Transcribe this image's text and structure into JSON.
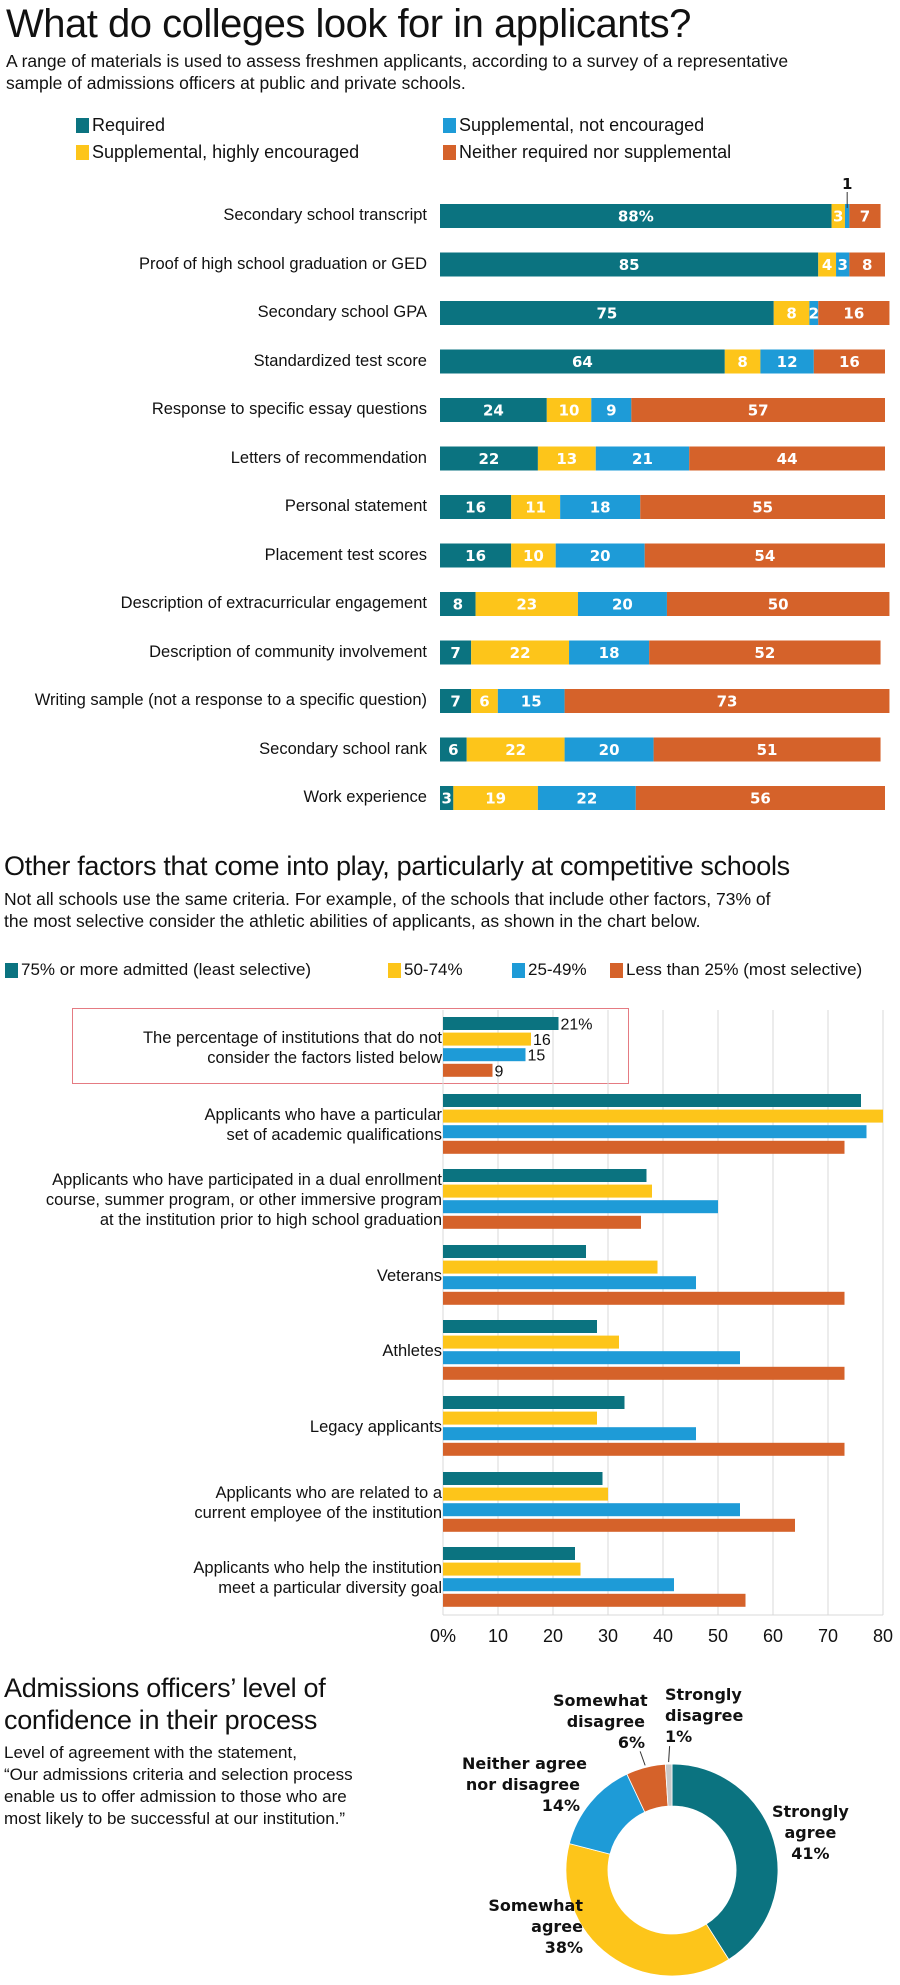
{
  "header": {
    "title": "What do colleges look for in applicants?",
    "subtitle_line1": "A range of materials is used to assess freshmen applicants, according to a survey of a representative",
    "subtitle_line2": "sample of admissions officers at public and private schools."
  },
  "section2": {
    "title": "Other factors that come into play, particularly at competitive schools",
    "subtitle_line1": "Not all schools use the same criteria. For example, of the schools that include other factors, 73% of",
    "subtitle_line2": "the most selective consider the athletic abilities of applicants, as shown in the chart below."
  },
  "section3": {
    "title_line1": "Admissions officers’ level of",
    "title_line2": "confidence in their process",
    "text_line1": "Level of agreement with the statement,",
    "text_line2": "“Our admissions criteria and selection process",
    "text_line3": "enable us to offer admission to those who are",
    "text_line4": "most likely to be successful at our institution.”"
  },
  "colors": {
    "teal": "#0b7380",
    "yellow": "#fdc51a",
    "blue": "#1e9bd7",
    "orange": "#d5622a",
    "gray": "#c8c8c8",
    "grid": "#d9d9d9",
    "highlight_box": "#e57b82"
  },
  "chart_data": [
    {
      "type": "bar",
      "orientation": "horizontal",
      "stacked": true,
      "title": "What do colleges look for in applicants?",
      "legend_position": "top",
      "unit": "%",
      "series_names": [
        "Required",
        "Supplemental, not encouraged",
        "Supplemental, highly encouraged",
        "Neither required nor supplemental"
      ],
      "legend": [
        {
          "name": "Required",
          "color": "#0b7380"
        },
        {
          "name": "Supplemental, highly encouraged",
          "color": "#fdc51a"
        },
        {
          "name": "Supplemental, not encouraged",
          "color": "#1e9bd7"
        },
        {
          "name": "Neither required nor supplemental",
          "color": "#d5622a"
        }
      ],
      "segment_order": [
        "Required",
        "Supplemental, highly encouraged",
        "Supplemental, not encouraged",
        "Neither required nor supplemental"
      ],
      "categories": [
        "Secondary school transcript",
        "Proof of high school graduation or GED",
        "Secondary school GPA",
        "Standardized test score",
        "Response to specific essay questions",
        "Letters of recommendation",
        "Personal statement",
        "Placement test scores",
        "Description of extracurricular engagement",
        "Description of community involvement",
        "Writing sample (not a response to a specific question)",
        "Secondary school rank",
        "Work experience"
      ],
      "rows": [
        {
          "values": [
            88,
            3,
            1,
            7
          ],
          "labels": [
            "88%",
            "3",
            "",
            "7"
          ],
          "callout": "1"
        },
        {
          "values": [
            85,
            4,
            3,
            8
          ],
          "labels": [
            "85",
            "4",
            "3",
            "8"
          ]
        },
        {
          "values": [
            75,
            8,
            2,
            16
          ],
          "labels": [
            "75",
            "8",
            "2",
            "16"
          ]
        },
        {
          "values": [
            64,
            8,
            12,
            16
          ],
          "labels": [
            "64",
            "8",
            "12",
            "16"
          ]
        },
        {
          "values": [
            24,
            10,
            9,
            57
          ],
          "labels": [
            "24",
            "10",
            "9",
            "57"
          ]
        },
        {
          "values": [
            22,
            13,
            21,
            44
          ],
          "labels": [
            "22",
            "13",
            "21",
            "44"
          ]
        },
        {
          "values": [
            16,
            11,
            18,
            55
          ],
          "labels": [
            "16",
            "11",
            "18",
            "55"
          ]
        },
        {
          "values": [
            16,
            10,
            20,
            54
          ],
          "labels": [
            "16",
            "10",
            "20",
            "54"
          ]
        },
        {
          "values": [
            8,
            23,
            20,
            50
          ],
          "labels": [
            "8",
            "23",
            "20",
            "50"
          ]
        },
        {
          "values": [
            7,
            22,
            18,
            52
          ],
          "labels": [
            "7",
            "22",
            "18",
            "52"
          ]
        },
        {
          "values": [
            7,
            6,
            15,
            73
          ],
          "labels": [
            "7",
            "6",
            "15",
            "73"
          ]
        },
        {
          "values": [
            6,
            22,
            20,
            51
          ],
          "labels": [
            "6",
            "22",
            "20",
            "51"
          ]
        },
        {
          "values": [
            3,
            19,
            22,
            56
          ],
          "labels": [
            "3",
            "19",
            "22",
            "56"
          ]
        }
      ]
    },
    {
      "type": "bar",
      "orientation": "horizontal",
      "stacked": false,
      "title": "Other factors that come into play, particularly at competitive schools",
      "legend_position": "top",
      "xlabel": "",
      "xlim": [
        0,
        80
      ],
      "xticks": [
        "0%",
        "10",
        "20",
        "30",
        "40",
        "50",
        "60",
        "70",
        "80"
      ],
      "grid": true,
      "series": [
        {
          "name": "75% or more admitted (least selective)",
          "color": "#0b7380",
          "values": [
            21,
            76,
            37,
            26,
            28,
            33,
            29,
            24
          ]
        },
        {
          "name": "50-74%",
          "color": "#fdc51a",
          "values": [
            16,
            80,
            38,
            39,
            32,
            28,
            30,
            25
          ]
        },
        {
          "name": "25-49%",
          "color": "#1e9bd7",
          "values": [
            15,
            77,
            50,
            46,
            54,
            46,
            54,
            42
          ]
        },
        {
          "name": "Less than 25% (most selective)",
          "color": "#d5622a",
          "values": [
            9,
            73,
            36,
            73,
            73,
            73,
            64,
            55
          ]
        }
      ],
      "categories": [
        [
          "The percentage of institutions that do not",
          "consider the factors listed below"
        ],
        [
          "Applicants who have a particular",
          "set of academic qualifications"
        ],
        [
          "Applicants who have participated in a dual enrollment",
          "course, summer program, or other immersive program",
          "at the institution prior to high school graduation"
        ],
        [
          "Veterans"
        ],
        [
          "Athletes"
        ],
        [
          "Legacy applicants"
        ],
        [
          "Applicants who are related to a",
          "current employee of the institution"
        ],
        [
          "Applicants who help the institution",
          "meet a particular diversity goal"
        ]
      ],
      "highlighted_group_labels": [
        "21%",
        "16",
        "15",
        "9"
      ]
    },
    {
      "type": "pie",
      "donut": true,
      "title": "Admissions officers’ level of confidence in their process",
      "slices": [
        {
          "name": "Strongly agree",
          "value": 41,
          "label_lines": [
            "Strongly",
            "agree",
            "41%"
          ],
          "color": "#0b7380"
        },
        {
          "name": "Somewhat agree",
          "value": 38,
          "label_lines": [
            "Somewhat",
            "agree",
            "38%"
          ],
          "color": "#fdc51a"
        },
        {
          "name": "Neither agree nor disagree",
          "value": 14,
          "label_lines": [
            "Neither agree",
            "nor disagree",
            "14%"
          ],
          "color": "#1e9bd7"
        },
        {
          "name": "Somewhat disagree",
          "value": 6,
          "label_lines": [
            "Somewhat",
            "disagree",
            "6%"
          ],
          "color": "#d5622a"
        },
        {
          "name": "Strongly disagree",
          "value": 1,
          "label_lines": [
            "Strongly",
            "disagree",
            "1%"
          ],
          "color": "#c8c8c8"
        }
      ]
    }
  ]
}
